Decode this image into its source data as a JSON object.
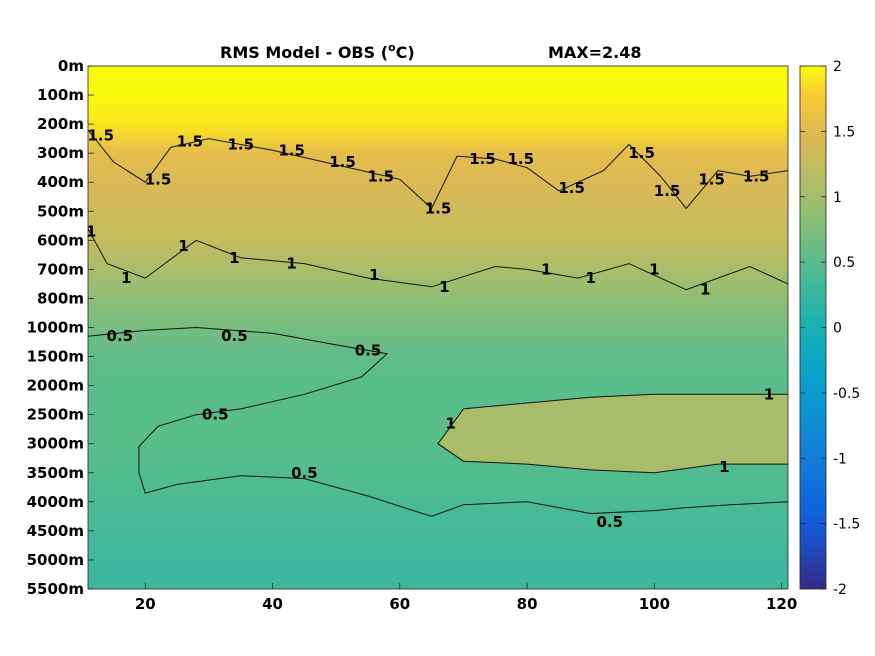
{
  "chart_data": {
    "type": "heatmap",
    "title": "RMS Model - OBS (",
    "title_unit": "o",
    "title_unit_suffix": "C)",
    "max_label": "MAX=2.48",
    "xlabel": "",
    "ylabel": "",
    "x_ticks": [
      20,
      40,
      60,
      80,
      100,
      120
    ],
    "x_tick_labels": [
      "20",
      "40",
      "60",
      "80",
      "100",
      "120"
    ],
    "xlim": [
      11,
      121
    ],
    "y_tick_labels": [
      "0m",
      "100m",
      "200m",
      "300m",
      "400m",
      "500m",
      "600m",
      "700m",
      "800m",
      "1000m",
      "1500m",
      "2000m",
      "2500m",
      "3000m",
      "3500m",
      "4000m",
      "4500m",
      "5000m",
      "5500m"
    ],
    "y_scale": "categorical depth levels, top to bottom",
    "colorbar": {
      "colormap": "parula",
      "clim": [
        -2,
        2
      ],
      "ticks": [
        2,
        1.5,
        1,
        0.5,
        0,
        -0.5,
        -1,
        -1.5,
        -2
      ],
      "tick_labels": [
        "2",
        "1.5",
        "1",
        "0.5",
        "0",
        "-0.5",
        "-1",
        "-1.5",
        "-2"
      ]
    },
    "depth_profile_rms": [
      2.3,
      2.2,
      1.9,
      1.55,
      1.45,
      1.35,
      1.25,
      1.05,
      0.85,
      0.7,
      0.55,
      0.5,
      0.5,
      0.5,
      0.45,
      0.4,
      0.35,
      0.3,
      0.3
    ],
    "contour_levels": [
      0.5,
      1,
      1.5
    ],
    "contours": [
      {
        "level": "1.5",
        "points": [
          [
            11,
            2.2
          ],
          [
            15,
            3.3
          ],
          [
            20,
            4.0
          ],
          [
            24,
            2.8
          ],
          [
            30,
            2.5
          ],
          [
            40,
            2.9
          ],
          [
            50,
            3.4
          ],
          [
            60,
            3.9
          ],
          [
            65,
            4.9
          ],
          [
            69,
            3.1
          ],
          [
            75,
            3.2
          ],
          [
            80,
            3.5
          ],
          [
            85,
            4.3
          ],
          [
            92,
            3.6
          ],
          [
            96,
            2.7
          ],
          [
            101,
            3.8
          ],
          [
            105,
            4.9
          ],
          [
            110,
            3.6
          ],
          [
            115,
            3.8
          ],
          [
            121,
            3.6
          ]
        ]
      },
      {
        "level": "1",
        "points": [
          [
            11,
            5.6
          ],
          [
            14,
            6.8
          ],
          [
            20,
            7.3
          ],
          [
            28,
            6.0
          ],
          [
            35,
            6.6
          ],
          [
            45,
            6.8
          ],
          [
            55,
            7.3
          ],
          [
            65,
            7.6
          ],
          [
            75,
            6.9
          ],
          [
            80,
            7.0
          ],
          [
            88,
            7.3
          ],
          [
            96,
            6.8
          ],
          [
            105,
            7.7
          ],
          [
            110,
            7.3
          ],
          [
            115,
            6.9
          ],
          [
            121,
            7.5
          ]
        ]
      },
      {
        "level": "0.5",
        "points": [
          [
            11,
            9.3
          ],
          [
            20,
            9.1
          ],
          [
            28,
            9.0
          ],
          [
            40,
            9.2
          ],
          [
            50,
            9.6
          ],
          [
            58,
            9.9
          ],
          [
            54,
            10.7
          ],
          [
            45,
            11.3
          ],
          [
            35,
            11.8
          ],
          [
            28,
            12.0
          ],
          [
            22,
            12.4
          ],
          [
            19,
            13.1
          ],
          [
            19,
            14.0
          ],
          [
            20,
            14.7
          ],
          [
            25,
            14.4
          ],
          [
            35,
            14.1
          ],
          [
            45,
            14.2
          ],
          [
            55,
            14.8
          ],
          [
            65,
            15.5
          ],
          [
            70,
            15.1
          ],
          [
            80,
            15.0
          ],
          [
            90,
            15.4
          ],
          [
            100,
            15.3
          ],
          [
            105,
            15.2
          ],
          [
            112,
            15.1
          ],
          [
            121,
            15.0
          ]
        ]
      },
      {
        "level": "1",
        "points": [
          [
            121,
            11.3
          ],
          [
            110,
            11.3
          ],
          [
            100,
            11.3
          ],
          [
            90,
            11.4
          ],
          [
            80,
            11.6
          ],
          [
            70,
            11.8
          ],
          [
            66,
            13.0
          ],
          [
            70,
            13.6
          ],
          [
            80,
            13.7
          ],
          [
            90,
            13.9
          ],
          [
            100,
            14.0
          ],
          [
            110,
            13.7
          ],
          [
            121,
            13.7
          ]
        ]
      }
    ],
    "contour_labels": [
      {
        "text": "1.5",
        "x": 13,
        "y": 2.4
      },
      {
        "text": "1.5",
        "x": 22,
        "y": 3.9
      },
      {
        "text": "1.5",
        "x": 27,
        "y": 2.6
      },
      {
        "text": "1.5",
        "x": 35,
        "y": 2.7
      },
      {
        "text": "1.5",
        "x": 43,
        "y": 2.9
      },
      {
        "text": "1.5",
        "x": 51,
        "y": 3.3
      },
      {
        "text": "1.5",
        "x": 57,
        "y": 3.8
      },
      {
        "text": "1.5",
        "x": 66,
        "y": 4.9
      },
      {
        "text": "1.5",
        "x": 73,
        "y": 3.2
      },
      {
        "text": "1.5",
        "x": 79,
        "y": 3.2
      },
      {
        "text": "1.5",
        "x": 87,
        "y": 4.2
      },
      {
        "text": "1.5",
        "x": 98,
        "y": 3.0
      },
      {
        "text": "1.5",
        "x": 102,
        "y": 4.3
      },
      {
        "text": "1.5",
        "x": 109,
        "y": 3.9
      },
      {
        "text": "1.5",
        "x": 116,
        "y": 3.8
      },
      {
        "text": "1",
        "x": 11.5,
        "y": 5.7
      },
      {
        "text": "1",
        "x": 17,
        "y": 7.3
      },
      {
        "text": "1",
        "x": 26,
        "y": 6.2
      },
      {
        "text": "1",
        "x": 34,
        "y": 6.6
      },
      {
        "text": "1",
        "x": 43,
        "y": 6.8
      },
      {
        "text": "1",
        "x": 56,
        "y": 7.2
      },
      {
        "text": "1",
        "x": 67,
        "y": 7.6
      },
      {
        "text": "1",
        "x": 83,
        "y": 7.0
      },
      {
        "text": "1",
        "x": 90,
        "y": 7.3
      },
      {
        "text": "1",
        "x": 100,
        "y": 7.0
      },
      {
        "text": "1",
        "x": 108,
        "y": 7.7
      },
      {
        "text": "0.5",
        "x": 16,
        "y": 9.3
      },
      {
        "text": "0.5",
        "x": 34,
        "y": 9.3
      },
      {
        "text": "0.5",
        "x": 55,
        "y": 9.8
      },
      {
        "text": "0.5",
        "x": 31,
        "y": 12.0
      },
      {
        "text": "0.5",
        "x": 45,
        "y": 14.0
      },
      {
        "text": "0.5",
        "x": 93,
        "y": 15.7
      },
      {
        "text": "1",
        "x": 68,
        "y": 12.3
      },
      {
        "text": "1",
        "x": 118,
        "y": 11.3
      },
      {
        "text": "1",
        "x": 111,
        "y": 13.8
      }
    ]
  }
}
